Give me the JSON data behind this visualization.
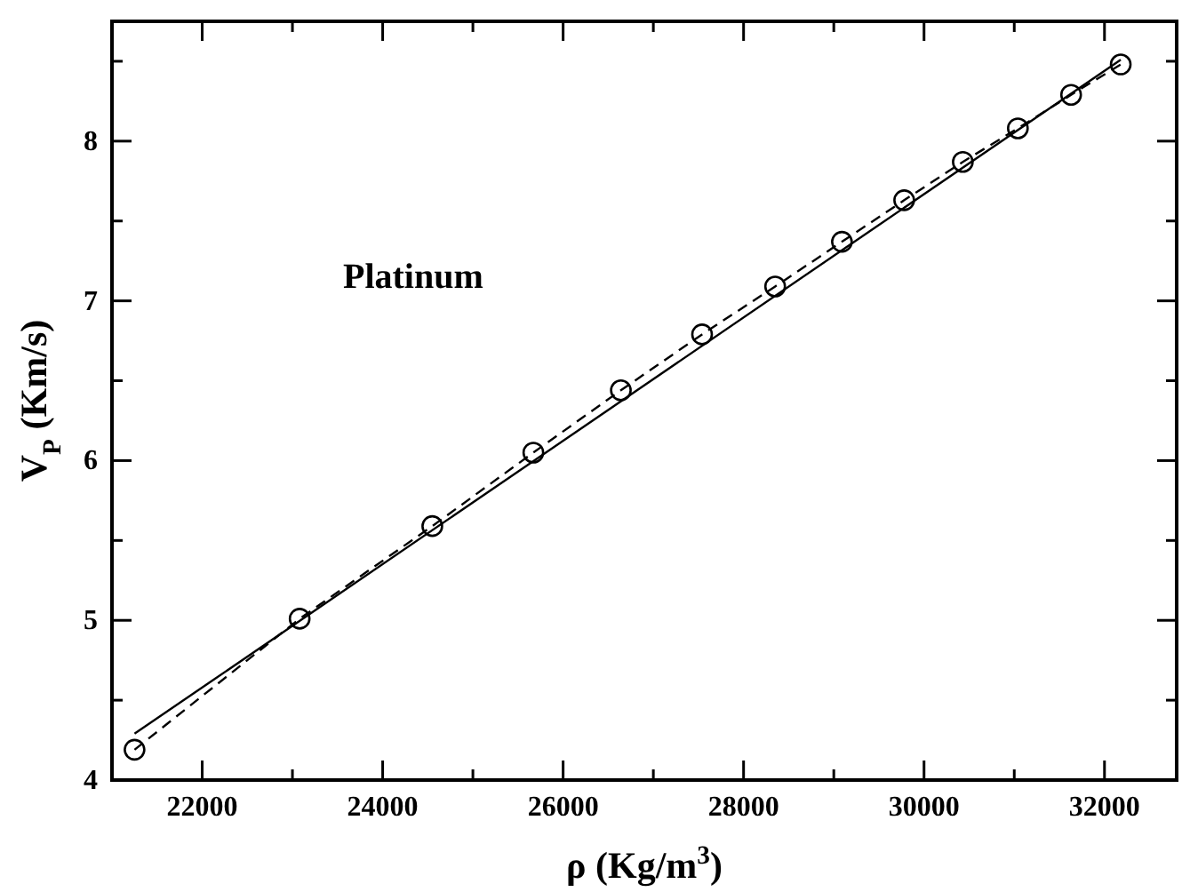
{
  "chart_data": {
    "type": "line",
    "xlabel": "ρ (Kg/m$^{3}$)",
    "ylabel": "V$_{P}$ (Km/s)",
    "annotations": [
      "Platinum"
    ],
    "xlim": [
      21000,
      32800
    ],
    "ylim": [
      4,
      8.75
    ],
    "xticks": [
      22000,
      {
        "value": 23000,
        "label": null
      },
      24000,
      {
        "value": 25000,
        "label": null
      },
      26000,
      {
        "value": 27000,
        "label": null
      },
      28000,
      {
        "value": 29000,
        "label": null
      },
      30000,
      {
        "value": 31000,
        "label": null
      },
      32000
    ],
    "yticks": [
      4,
      {
        "value": 4.5,
        "label": null
      },
      5,
      {
        "value": 5.5,
        "label": null
      },
      6,
      {
        "value": 6.5,
        "label": null
      },
      7,
      {
        "value": 7.5,
        "label": null
      },
      8,
      {
        "value": 8.5,
        "label": null
      }
    ],
    "grid": false,
    "series": [
      {
        "color": "#000000",
        "marker": "circle",
        "line_style": "dashed",
        "x": [
          21250,
          23080,
          24550,
          25670,
          26640,
          27540,
          28350,
          29090,
          29780,
          30430,
          31040,
          31630,
          32180
        ],
        "values": [
          4.19,
          5.01,
          5.59,
          6.05,
          6.44,
          6.79,
          7.09,
          7.37,
          7.63,
          7.87,
          8.08,
          8.29,
          8.48
        ]
      },
      {
        "color": "#000000",
        "marker": "none",
        "line_style": "solid",
        "x": [
          21250,
          32180
        ],
        "values": [
          4.29,
          8.51
        ]
      }
    ]
  }
}
